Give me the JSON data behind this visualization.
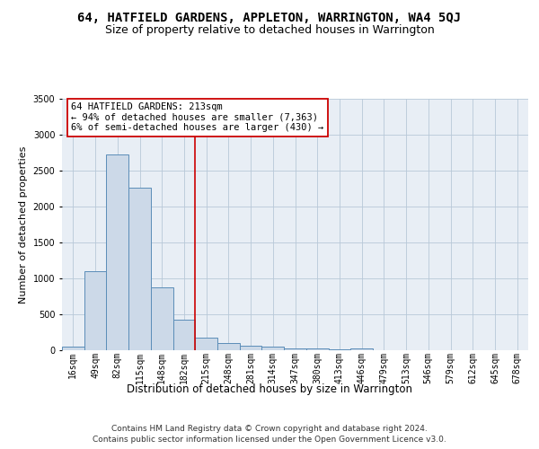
{
  "title1": "64, HATFIELD GARDENS, APPLETON, WARRINGTON, WA4 5QJ",
  "title2": "Size of property relative to detached houses in Warrington",
  "xlabel": "Distribution of detached houses by size in Warrington",
  "ylabel": "Number of detached properties",
  "categories": [
    "16sqm",
    "49sqm",
    "82sqm",
    "115sqm",
    "148sqm",
    "182sqm",
    "215sqm",
    "248sqm",
    "281sqm",
    "314sqm",
    "347sqm",
    "380sqm",
    "413sqm",
    "446sqm",
    "479sqm",
    "513sqm",
    "546sqm",
    "579sqm",
    "612sqm",
    "645sqm",
    "678sqm"
  ],
  "values": [
    50,
    1100,
    2730,
    2260,
    870,
    420,
    175,
    100,
    65,
    50,
    30,
    20,
    10,
    20,
    5,
    5,
    2,
    0,
    0,
    0,
    0
  ],
  "bar_color": "#ccd9e8",
  "bar_edge_color": "#5b8db8",
  "vline_x": 5.5,
  "vline_color": "#cc0000",
  "annotation_text": "64 HATFIELD GARDENS: 213sqm\n← 94% of detached houses are smaller (7,363)\n6% of semi-detached houses are larger (430) →",
  "annotation_box_color": "#ffffff",
  "annotation_box_edge": "#cc0000",
  "ylim": [
    0,
    3500
  ],
  "yticks": [
    0,
    500,
    1000,
    1500,
    2000,
    2500,
    3000,
    3500
  ],
  "background_color": "#e8eef5",
  "footnote1": "Contains HM Land Registry data © Crown copyright and database right 2024.",
  "footnote2": "Contains public sector information licensed under the Open Government Licence v3.0.",
  "title1_fontsize": 10,
  "title2_fontsize": 9,
  "xlabel_fontsize": 8.5,
  "ylabel_fontsize": 8,
  "tick_fontsize": 7,
  "annot_fontsize": 7.5,
  "footnote_fontsize": 6.5
}
